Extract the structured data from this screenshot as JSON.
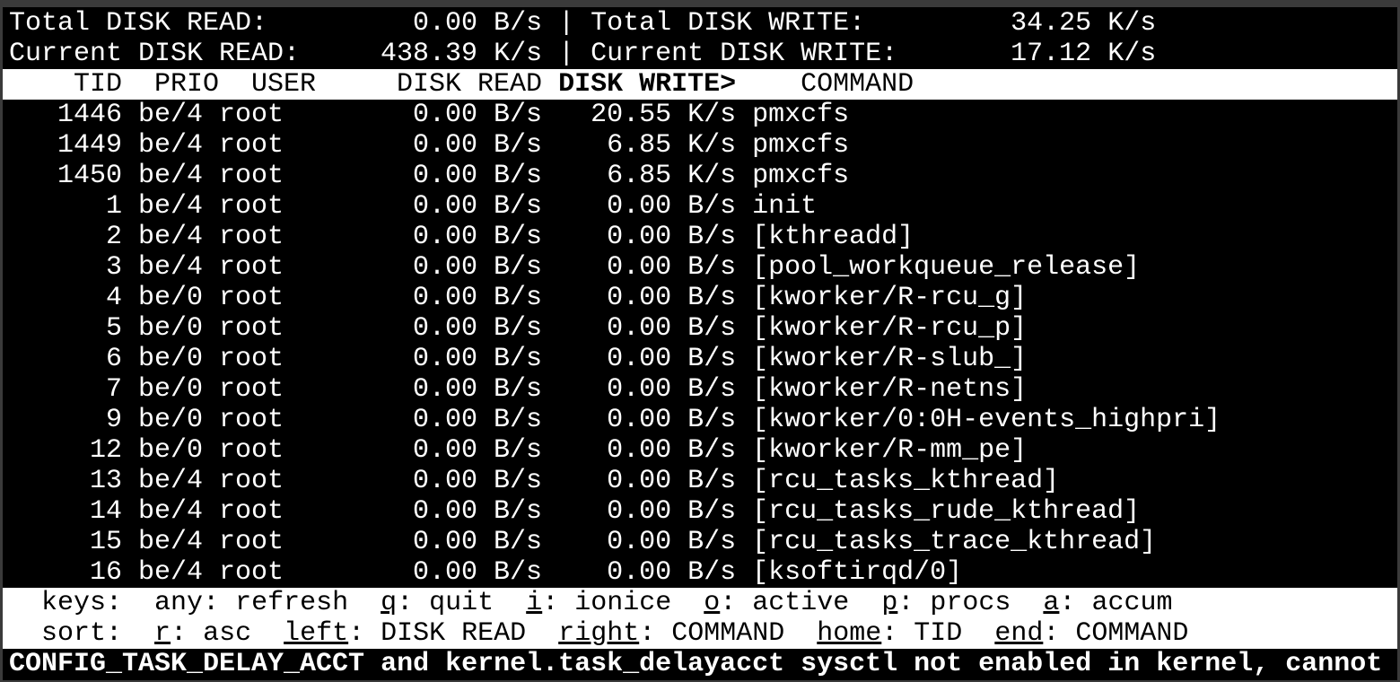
{
  "summary": {
    "total_read_label": "Total DISK READ:",
    "total_read": "0.00 B/s",
    "total_write_label": "Total DISK WRITE:",
    "total_write": "34.25 K/s",
    "current_read_label": "Current DISK READ:",
    "current_read": "438.39 K/s",
    "current_write_label": "Current DISK WRITE:",
    "current_write": "17.12 K/s",
    "separator": "|"
  },
  "columns": {
    "tid": "TID",
    "prio": "PRIO",
    "user": "USER",
    "read": "DISK READ",
    "write": "DISK WRITE>",
    "command": "COMMAND"
  },
  "rows": [
    {
      "tid": "1446",
      "prio": "be/4",
      "user": "root",
      "read": "0.00 B/s",
      "write": "20.55 K/s",
      "command": "pmxcfs"
    },
    {
      "tid": "1449",
      "prio": "be/4",
      "user": "root",
      "read": "0.00 B/s",
      "write": "6.85 K/s",
      "command": "pmxcfs"
    },
    {
      "tid": "1450",
      "prio": "be/4",
      "user": "root",
      "read": "0.00 B/s",
      "write": "6.85 K/s",
      "command": "pmxcfs"
    },
    {
      "tid": "1",
      "prio": "be/4",
      "user": "root",
      "read": "0.00 B/s",
      "write": "0.00 B/s",
      "command": "init"
    },
    {
      "tid": "2",
      "prio": "be/4",
      "user": "root",
      "read": "0.00 B/s",
      "write": "0.00 B/s",
      "command": "[kthreadd]"
    },
    {
      "tid": "3",
      "prio": "be/4",
      "user": "root",
      "read": "0.00 B/s",
      "write": "0.00 B/s",
      "command": "[pool_workqueue_release]"
    },
    {
      "tid": "4",
      "prio": "be/0",
      "user": "root",
      "read": "0.00 B/s",
      "write": "0.00 B/s",
      "command": "[kworker/R-rcu_g]"
    },
    {
      "tid": "5",
      "prio": "be/0",
      "user": "root",
      "read": "0.00 B/s",
      "write": "0.00 B/s",
      "command": "[kworker/R-rcu_p]"
    },
    {
      "tid": "6",
      "prio": "be/0",
      "user": "root",
      "read": "0.00 B/s",
      "write": "0.00 B/s",
      "command": "[kworker/R-slub_]"
    },
    {
      "tid": "7",
      "prio": "be/0",
      "user": "root",
      "read": "0.00 B/s",
      "write": "0.00 B/s",
      "command": "[kworker/R-netns]"
    },
    {
      "tid": "9",
      "prio": "be/0",
      "user": "root",
      "read": "0.00 B/s",
      "write": "0.00 B/s",
      "command": "[kworker/0:0H-events_highpri]"
    },
    {
      "tid": "12",
      "prio": "be/0",
      "user": "root",
      "read": "0.00 B/s",
      "write": "0.00 B/s",
      "command": "[kworker/R-mm_pe]"
    },
    {
      "tid": "13",
      "prio": "be/4",
      "user": "root",
      "read": "0.00 B/s",
      "write": "0.00 B/s",
      "command": "[rcu_tasks_kthread]"
    },
    {
      "tid": "14",
      "prio": "be/4",
      "user": "root",
      "read": "0.00 B/s",
      "write": "0.00 B/s",
      "command": "[rcu_tasks_rude_kthread]"
    },
    {
      "tid": "15",
      "prio": "be/4",
      "user": "root",
      "read": "0.00 B/s",
      "write": "0.00 B/s",
      "command": "[rcu_tasks_trace_kthread]"
    },
    {
      "tid": "16",
      "prio": "be/4",
      "user": "root",
      "read": "0.00 B/s",
      "write": "0.00 B/s",
      "command": "[ksoftirqd/0]"
    }
  ],
  "keys": {
    "label": "keys:",
    "items": [
      {
        "key": "any",
        "desc": "refresh",
        "underline": false
      },
      {
        "key": "q",
        "desc": "quit",
        "underline": true
      },
      {
        "key": "i",
        "desc": "ionice",
        "underline": true
      },
      {
        "key": "o",
        "desc": "active",
        "underline": true
      },
      {
        "key": "p",
        "desc": "procs",
        "underline": true
      },
      {
        "key": "a",
        "desc": "accum",
        "underline": true
      }
    ]
  },
  "sort": {
    "label": "sort:",
    "items": [
      {
        "key": "r",
        "desc": "asc",
        "underline": true
      },
      {
        "key": "left",
        "desc": "DISK READ",
        "underline": true
      },
      {
        "key": "right",
        "desc": "COMMAND",
        "underline": true
      },
      {
        "key": "home",
        "desc": "TID",
        "underline": true
      },
      {
        "key": "end",
        "desc": "COMMAND",
        "underline": true
      }
    ]
  },
  "warning": "CONFIG_TASK_DELAY_ACCT and kernel.task_delayacct sysctl not enabled in kernel, cannot"
}
